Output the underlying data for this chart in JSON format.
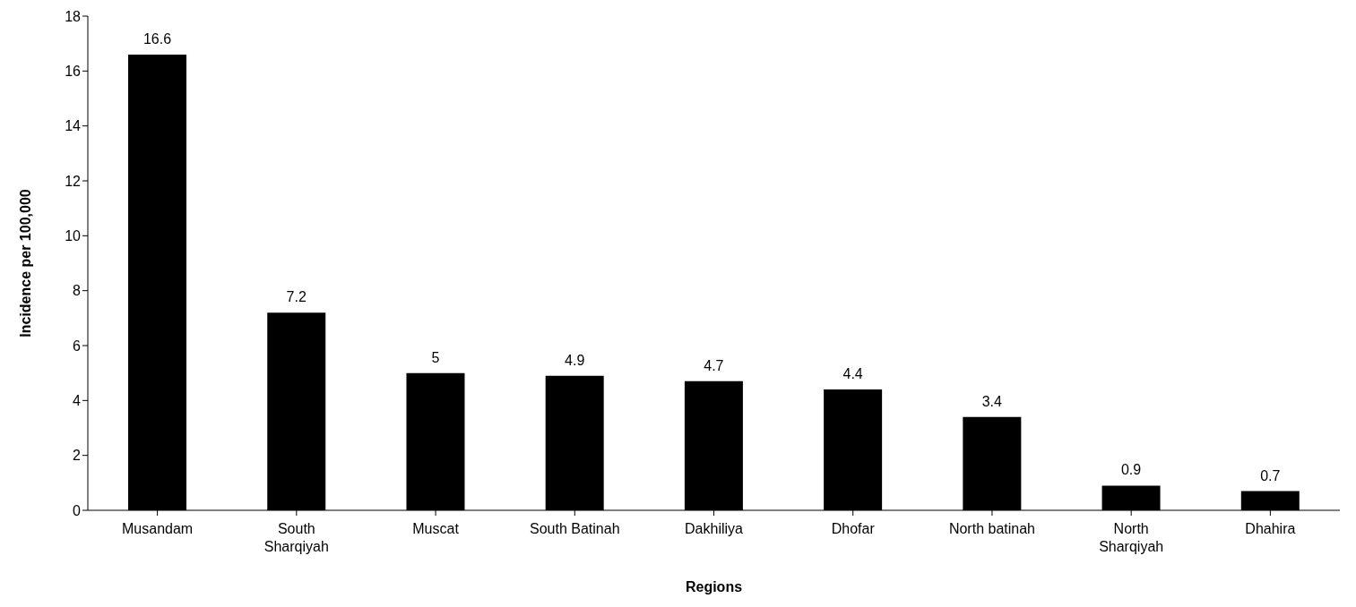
{
  "chart_data": {
    "type": "bar",
    "xlabel": "Regions",
    "ylabel": "Incidence per 100,000",
    "categories": [
      "Musandam",
      "South Sharqiyah",
      "Muscat",
      "South Batinah",
      "Dakhiliya",
      "Dhofar",
      "North batinah",
      "North Sharqiyah",
      "Dhahira"
    ],
    "values": [
      16.6,
      7.2,
      5,
      4.9,
      4.7,
      4.4,
      3.4,
      0.9,
      0.7
    ],
    "color": "#000000",
    "ylim": [
      0,
      18
    ],
    "yticks": [
      0,
      2,
      4,
      6,
      8,
      10,
      12,
      14,
      16,
      18
    ],
    "grid": false,
    "legend": false,
    "data_labels": true
  }
}
